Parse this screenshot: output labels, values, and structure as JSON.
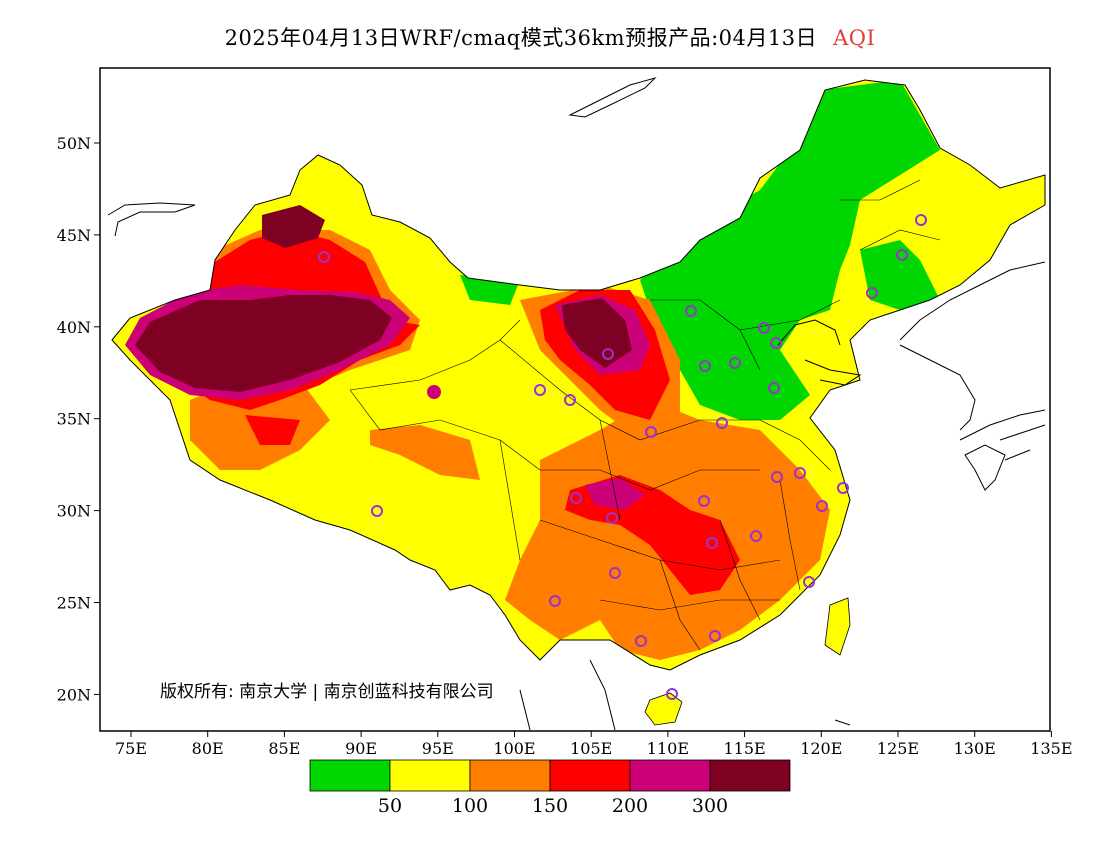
{
  "title": {
    "main": "2025年04月13日WRF/cmaq模式36km预报产品:04月13日",
    "variable": "AQI"
  },
  "copyright": "版权所有: 南京大学 | 南京创蓝科技有限公司",
  "axes": {
    "x_ticks": [
      "75E",
      "80E",
      "85E",
      "90E",
      "95E",
      "100E",
      "105E",
      "110E",
      "115E",
      "120E",
      "125E",
      "130E",
      "135E"
    ],
    "y_ticks": [
      "50N",
      "45N",
      "40N",
      "35N",
      "30N",
      "25N",
      "20N"
    ]
  },
  "colorbar": {
    "colors": [
      "#00d700",
      "#ffff00",
      "#ff7e00",
      "#ff0000",
      "#cc0077",
      "#7e0023"
    ],
    "labels": [
      "50",
      "100",
      "150",
      "200",
      "300"
    ]
  },
  "colors": {
    "good": "#00d700",
    "moderate": "#ffff00",
    "usg": "#ff7e00",
    "unhealthy": "#ff0000",
    "very_unhealthy": "#cc0077",
    "hazardous": "#7e0023",
    "station_marker": "#9933cc"
  }
}
